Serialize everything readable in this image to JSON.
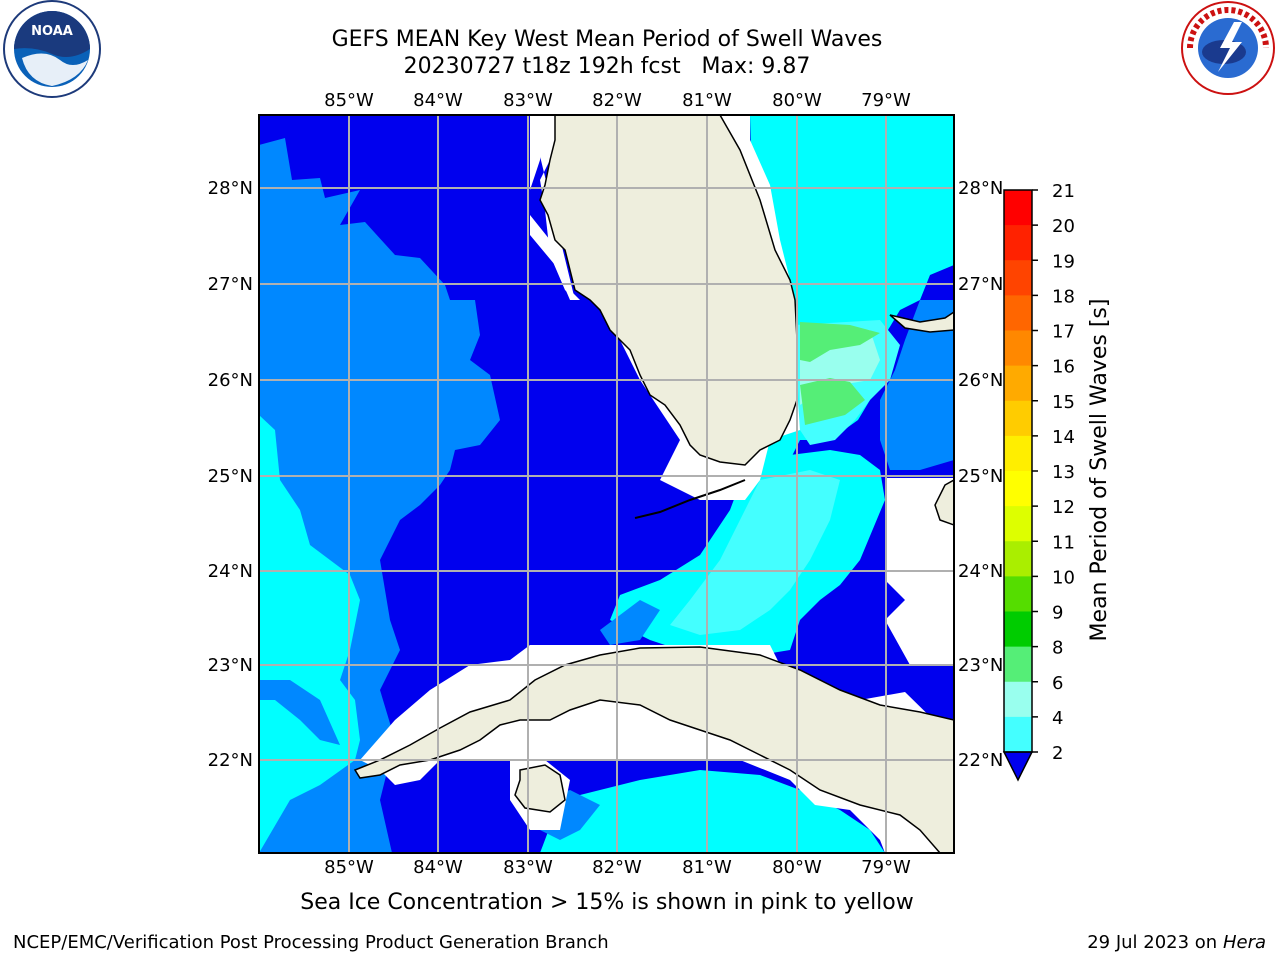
{
  "title_line1": "GEFS MEAN Key West Mean Period of Swell Waves",
  "title_line2": "20230727 t18z 192h fcst   Max: 9.87",
  "subtitle": "Sea Ice Concentration > 15% is shown in pink to yellow",
  "footer": {
    "left": "NCEP/EMC/Verification Post Processing Product Generation Branch",
    "date": "29 Jul 2023 on ",
    "machine": "Hera"
  },
  "logos": {
    "left": "noaa-logo",
    "right": "nws-logo"
  },
  "map": {
    "lon_labels": [
      "85°W",
      "84°W",
      "83°W",
      "82°W",
      "81°W",
      "80°W",
      "79°W"
    ],
    "lat_labels": [
      "28°N",
      "27°N",
      "26°N",
      "25°N",
      "24°N",
      "23°N",
      "22°N"
    ],
    "land_color": "#eeeedd",
    "grid_color": "#b0b0b0"
  },
  "colorbar": {
    "label": "Mean Period of Swell Waves [s]",
    "ticks": [
      "21",
      "20",
      "19",
      "18",
      "17",
      "16",
      "15",
      "14",
      "13",
      "12",
      "11",
      "10",
      "9",
      "8",
      "6",
      "4",
      "2"
    ],
    "colors": [
      "#ff0000",
      "#ff2200",
      "#ff4400",
      "#ff6600",
      "#ff8800",
      "#ffaa00",
      "#ffcc00",
      "#ffee00",
      "#ffff00",
      "#ddff00",
      "#aaee00",
      "#55dd00",
      "#00cc00",
      "#55ee77",
      "#99ffee",
      "#44ffff",
      "#00ffff",
      "#0088ff"
    ],
    "under_color": "#0000ee"
  }
}
